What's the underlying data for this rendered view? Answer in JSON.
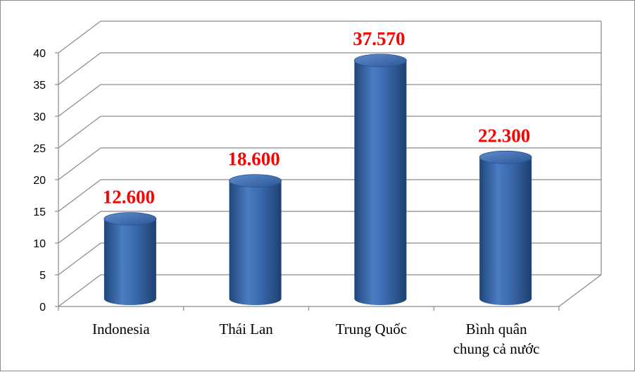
{
  "colors": {
    "bar": "#3d6fb5",
    "bar_dark": "#1f4679",
    "bar_light": "#6f9ad6",
    "data_label": "#ff0000",
    "grid": "#8a8a8a"
  },
  "chart_data": {
    "type": "bar",
    "style": "3d-cylinder",
    "title": "",
    "xlabel": "",
    "ylabel": "",
    "categories": [
      {
        "line1": "Indonesia",
        "line2": ""
      },
      {
        "line1": "Thái Lan",
        "line2": ""
      },
      {
        "line1": "Trung Quốc",
        "line2": ""
      },
      {
        "line1": "Bình quân",
        "line2": "chung cả nước"
      }
    ],
    "values": [
      12.6,
      18.6,
      37.57,
      22.3
    ],
    "data_labels": [
      "12.600",
      "18.600",
      "37.570",
      "22.300"
    ],
    "ylim": [
      0,
      40
    ],
    "yticks": [
      0,
      5,
      10,
      15,
      20,
      25,
      30,
      35,
      40
    ],
    "grid": true,
    "legend": "none"
  }
}
